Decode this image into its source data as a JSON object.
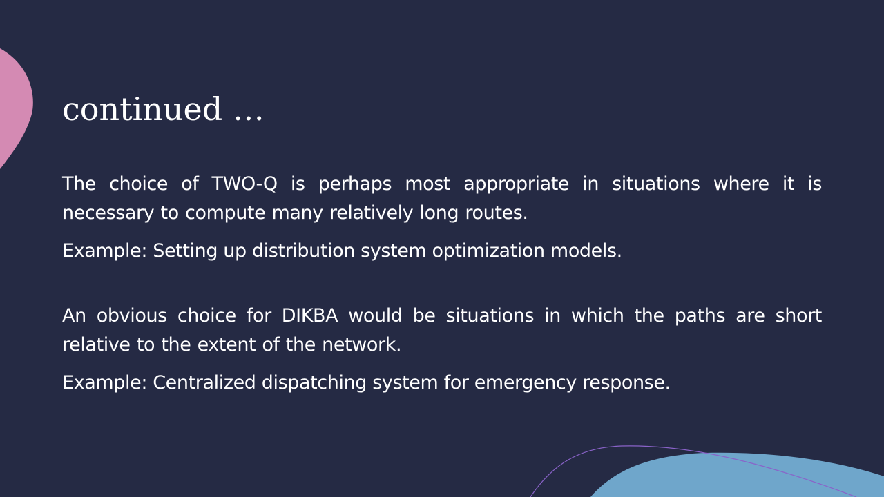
{
  "slide": {
    "title": "continued …",
    "blocks": [
      {
        "paragraph": "The choice of TWO-Q is perhaps most appropriate in situations where it is necessary to compute many relatively long routes.",
        "example": "Example: Setting up distribution system optimization models."
      },
      {
        "paragraph": "An obvious choice for DIKBA would be situations in which the paths are short relative to the extent of the network.",
        "example": "Example: Centralized dispatching system for emergency response."
      }
    ]
  },
  "colors": {
    "background": "#252a44",
    "pink_accent": "#d48ab3",
    "blue_accent": "#6fa6cb",
    "purple_line": "#8a63c9",
    "text": "#ffffff"
  }
}
